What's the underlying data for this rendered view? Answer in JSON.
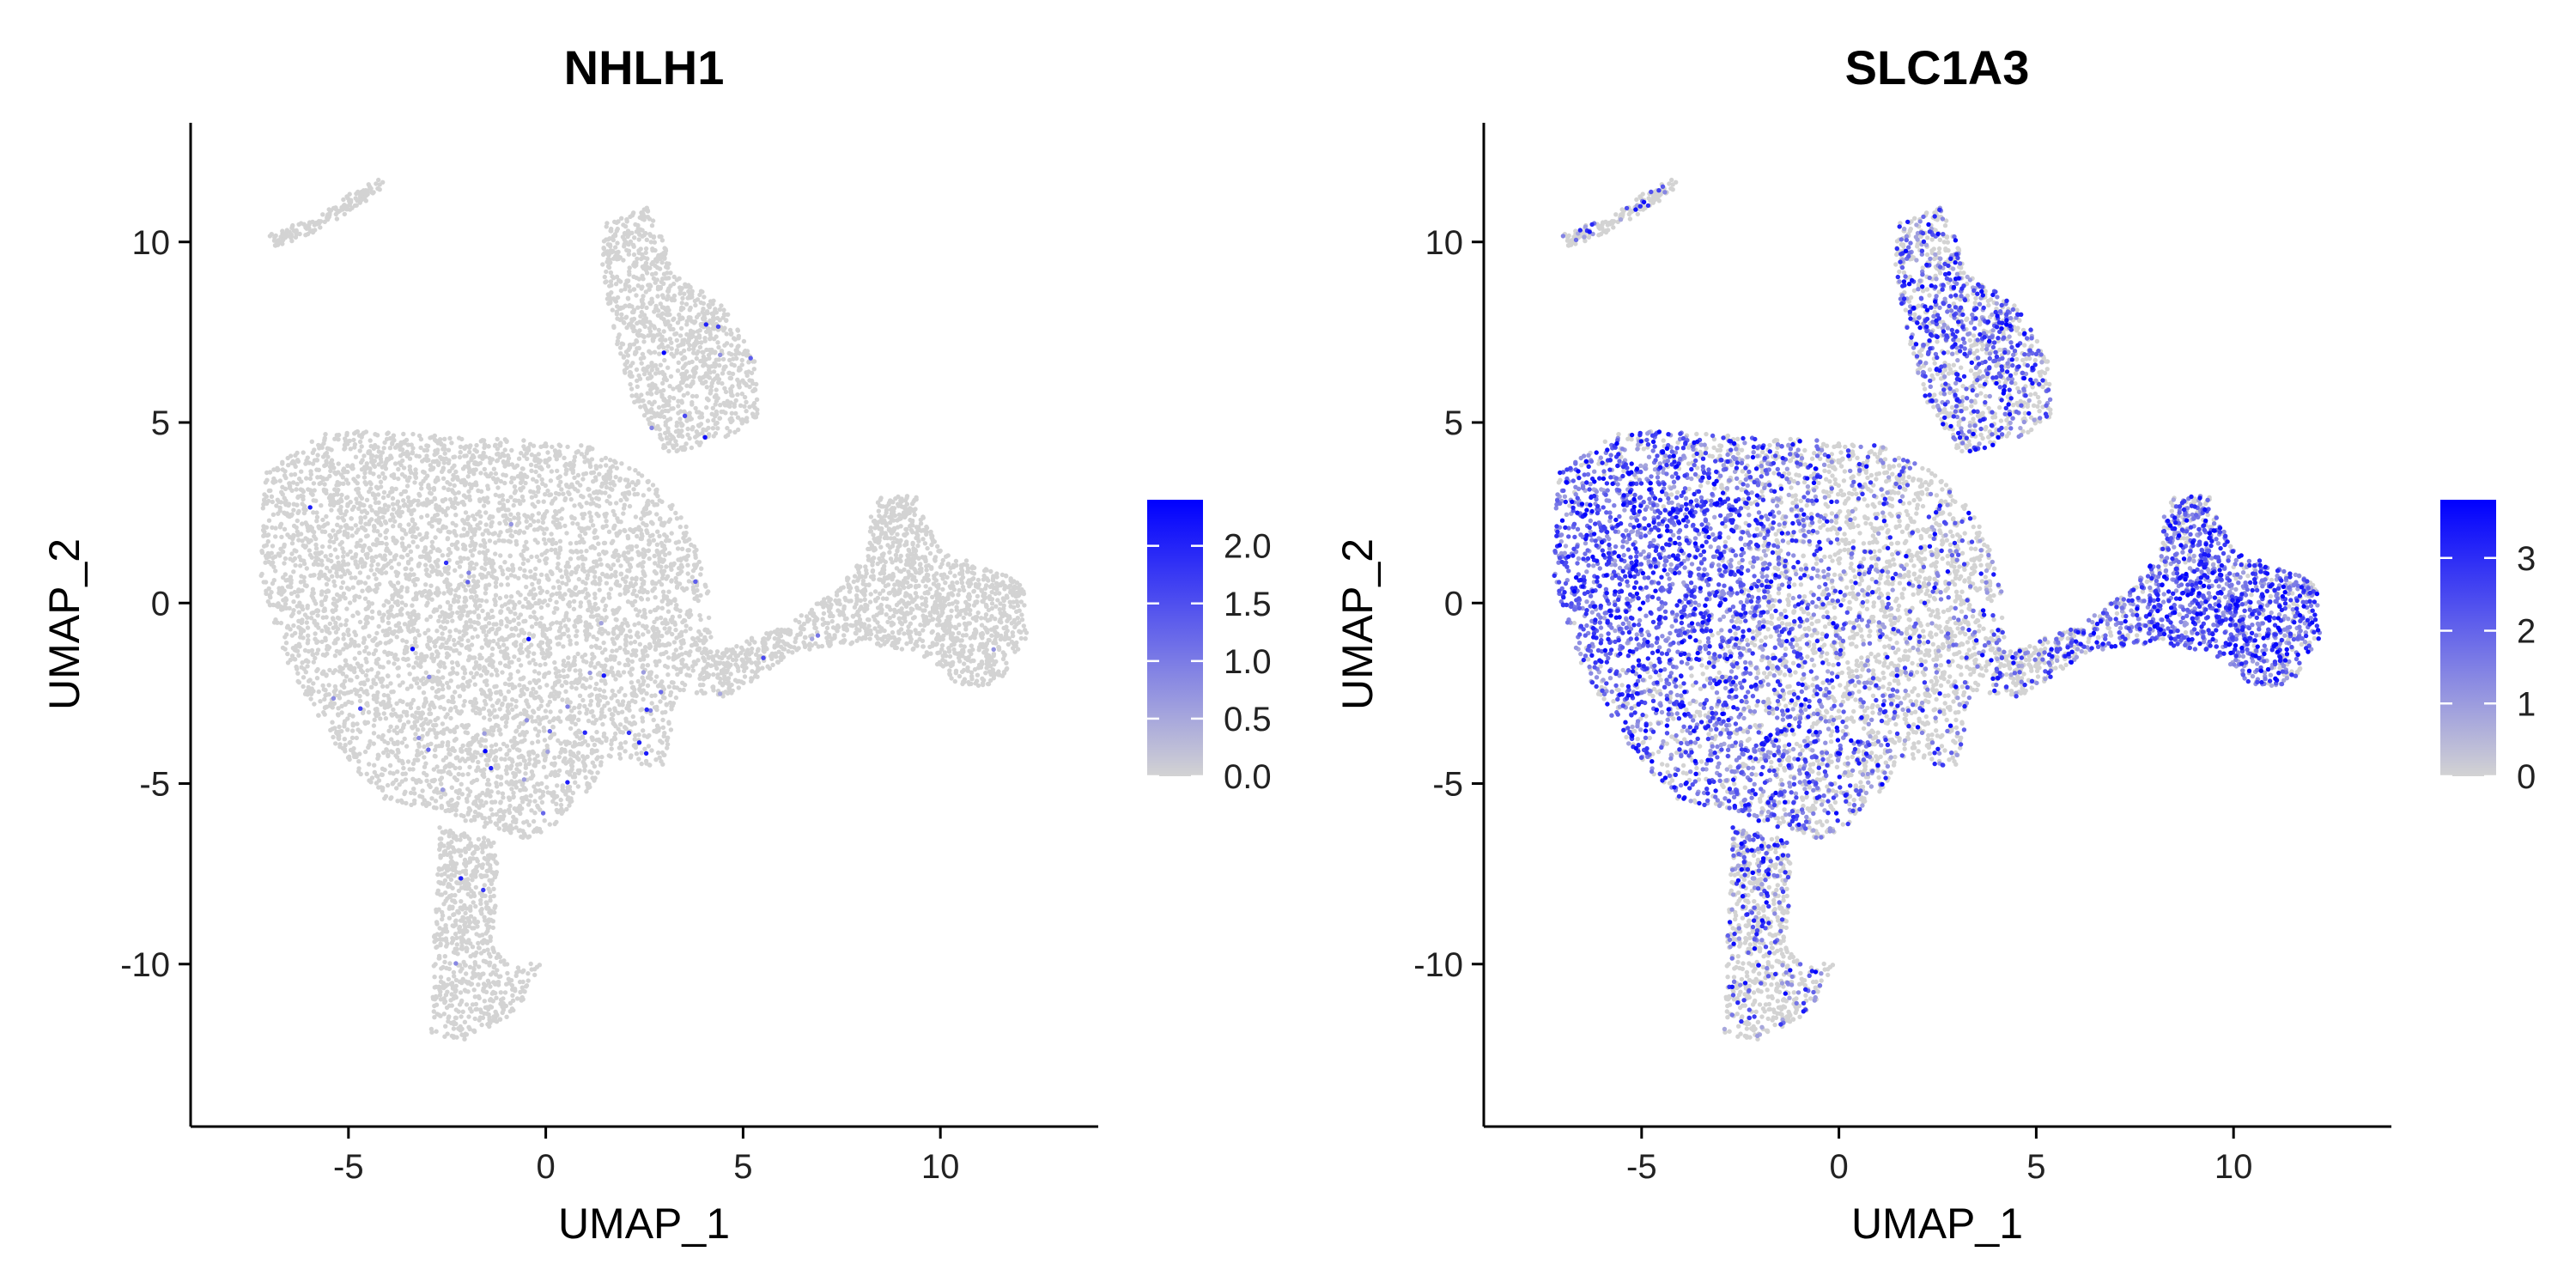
{
  "chart_data": [
    {
      "type": "scatter",
      "title": "NHLH1",
      "xlabel": "UMAP_1",
      "ylabel": "UMAP_2",
      "xlim": [
        -9,
        14
      ],
      "ylim": [
        -14.5,
        13.3
      ],
      "x_ticks": [
        -5,
        0,
        5,
        10
      ],
      "y_ticks": [
        -10,
        -5,
        0,
        5,
        10
      ],
      "x_tick_labels": [
        "-5",
        "0",
        "5",
        "10"
      ],
      "y_tick_labels": [
        "-10",
        "-5",
        "0",
        "5",
        "10"
      ],
      "grid": false,
      "legend": {
        "placement": "right",
        "min": 0,
        "max": 2.4,
        "breaks": [
          0.0,
          0.5,
          1.0,
          1.5,
          2.0
        ],
        "labels": [
          "0.0",
          "0.5",
          "1.0",
          "1.5",
          "2.0"
        ],
        "low_color": "#d3d3d3",
        "high_color": "#0000ff"
      },
      "expression_profile": {
        "expressed_fraction": 0.006,
        "enriched_regions": [
          {
            "cx": 2.0,
            "cy": -4.5,
            "r": 3.0,
            "weight": 1.0
          },
          {
            "cx": 4.0,
            "cy": 6.0,
            "r": 2.0,
            "weight": 0.7
          }
        ]
      }
    },
    {
      "type": "scatter",
      "title": "SLC1A3",
      "xlabel": "UMAP_1",
      "ylabel": "UMAP_2",
      "xlim": [
        -9,
        14
      ],
      "ylim": [
        -14.5,
        13.3
      ],
      "x_ticks": [
        -5,
        0,
        5,
        10
      ],
      "y_ticks": [
        -10,
        -5,
        0,
        5,
        10
      ],
      "x_tick_labels": [
        "-5",
        "0",
        "5",
        "10"
      ],
      "y_tick_labels": [
        "-10",
        "-5",
        "0",
        "5",
        "10"
      ],
      "grid": false,
      "legend": {
        "placement": "right",
        "min": 0,
        "max": 3.8,
        "breaks": [
          0,
          1,
          2,
          3
        ],
        "labels": [
          "0",
          "1",
          "2",
          "3"
        ],
        "low_color": "#d3d3d3",
        "high_color": "#0000ff"
      },
      "expression_profile": {
        "expressed_fraction": 0.45,
        "enriched_regions": [
          {
            "cx": -5.5,
            "cy": 1.0,
            "r": 3.2,
            "weight": 1.0
          },
          {
            "cx": 9.5,
            "cy": -0.5,
            "r": 2.6,
            "weight": 0.85
          },
          {
            "cx": 3.5,
            "cy": 7.5,
            "r": 2.2,
            "weight": 0.5
          },
          {
            "cx": -3.0,
            "cy": -4.0,
            "r": 2.5,
            "weight": 0.6
          }
        ]
      }
    }
  ],
  "umap_clusters": [
    {
      "name": "main-body",
      "shape": "polygon",
      "count": 5200,
      "points": [
        [
          -7.3,
          1.0
        ],
        [
          -7.1,
          3.6
        ],
        [
          -5.5,
          4.8
        ],
        [
          -2.0,
          4.6
        ],
        [
          1.0,
          4.4
        ],
        [
          2.6,
          3.5
        ],
        [
          3.6,
          2.2
        ],
        [
          4.1,
          0.7
        ],
        [
          4.2,
          -1.1
        ],
        [
          3.3,
          -2.8
        ],
        [
          3.0,
          -4.6
        ],
        [
          1.6,
          -4.3
        ],
        [
          1.0,
          -5.3
        ],
        [
          -0.2,
          -6.6
        ],
        [
          -1.4,
          -6.3
        ],
        [
          -2.6,
          -5.8
        ],
        [
          -4.2,
          -5.4
        ],
        [
          -5.4,
          -3.8
        ],
        [
          -6.6,
          -1.6
        ]
      ]
    },
    {
      "name": "upper-cluster",
      "shape": "polygon",
      "count": 1100,
      "points": [
        [
          1.5,
          10.5
        ],
        [
          2.6,
          11.0
        ],
        [
          3.0,
          10.0
        ],
        [
          3.4,
          9.0
        ],
        [
          4.6,
          8.2
        ],
        [
          5.3,
          6.7
        ],
        [
          5.4,
          5.1
        ],
        [
          4.6,
          4.6
        ],
        [
          3.1,
          4.1
        ],
        [
          2.2,
          5.6
        ],
        [
          1.7,
          7.6
        ],
        [
          1.4,
          9.3
        ]
      ]
    },
    {
      "name": "right-cluster",
      "shape": "polygon",
      "count": 1300,
      "points": [
        [
          6.2,
          -0.5
        ],
        [
          7.4,
          0.4
        ],
        [
          8.1,
          1.3
        ],
        [
          8.3,
          2.9
        ],
        [
          9.4,
          3.0
        ],
        [
          9.9,
          1.6
        ],
        [
          10.8,
          1.1
        ],
        [
          12.1,
          0.6
        ],
        [
          12.2,
          -0.9
        ],
        [
          11.5,
          -2.2
        ],
        [
          10.6,
          -2.4
        ],
        [
          9.5,
          -1.4
        ],
        [
          8.1,
          -1.1
        ],
        [
          6.6,
          -1.3
        ]
      ]
    },
    {
      "name": "bridge",
      "shape": "polygon",
      "count": 260,
      "points": [
        [
          4.0,
          -1.4
        ],
        [
          6.2,
          -0.6
        ],
        [
          6.8,
          -1.0
        ],
        [
          6.0,
          -1.6
        ],
        [
          4.6,
          -2.6
        ],
        [
          3.8,
          -2.5
        ]
      ]
    },
    {
      "name": "lower-stalk",
      "shape": "polygon",
      "count": 700,
      "points": [
        [
          -2.7,
          -6.2
        ],
        [
          -1.2,
          -6.6
        ],
        [
          -1.3,
          -9.6
        ],
        [
          -0.9,
          -10.1
        ],
        [
          -0.1,
          -9.9
        ],
        [
          -0.7,
          -11.3
        ],
        [
          -2.0,
          -12.1
        ],
        [
          -2.9,
          -12.0
        ],
        [
          -2.9,
          -10.4
        ],
        [
          -2.8,
          -8.6
        ]
      ]
    },
    {
      "name": "top-left-streak",
      "shape": "line",
      "count": 150,
      "points": [
        [
          -7.0,
          10.0
        ],
        [
          -5.6,
          10.6
        ],
        [
          -4.3,
          11.6
        ]
      ]
    }
  ]
}
